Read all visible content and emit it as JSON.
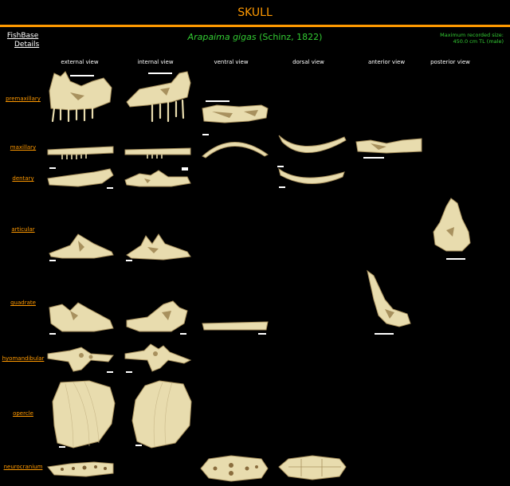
{
  "header": {
    "title": "SKULL"
  },
  "fishbase_link": {
    "line1": "FishBase",
    "line2": "Details"
  },
  "species": {
    "name": "Arapaima gigas",
    "author": "(Schinz, 1822)"
  },
  "max_size": {
    "line1": "Maximum recorded size:",
    "line2": "450.0 cm TL (male)"
  },
  "views": [
    "external view",
    "internal view",
    "ventral view",
    "dorsal view",
    "anterior view",
    "posterior view"
  ],
  "bones": [
    "premaxillary",
    "maxillary",
    "dentary",
    "articular",
    "quadrate",
    "hyomandibular",
    "opercle",
    "neurocranium"
  ],
  "colors": {
    "accent": "#ff9900",
    "species": "#33cc33",
    "bone": "#e8dcae",
    "bone_shadow": "#a8915e",
    "background": "#000000"
  }
}
